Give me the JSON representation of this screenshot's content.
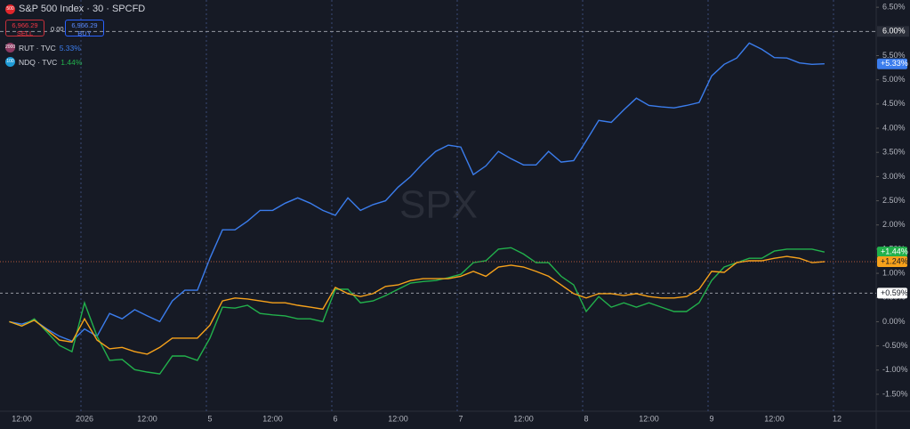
{
  "chart_data": {
    "type": "line",
    "title": "S&P 500 Index · 30 · SPCFD",
    "badges": [
      "500",
      "2000",
      "100"
    ],
    "sell_price": "6,966.29",
    "sell_label": "SELL",
    "spread": "0.00",
    "buy_price": "6,966.29",
    "buy_label": "BUY",
    "watermark": "SPX",
    "categories": [
      null,
      "12:00",
      null,
      null,
      null,
      null,
      "2026",
      null,
      null,
      null,
      null,
      "12:00",
      null,
      null,
      null,
      null,
      "5",
      null,
      null,
      null,
      null,
      "12:00",
      null,
      null,
      null,
      null,
      "6",
      null,
      null,
      null,
      null,
      "12:00",
      null,
      null,
      null,
      null,
      "7",
      null,
      null,
      null,
      null,
      "12:00",
      null,
      null,
      null,
      null,
      "8",
      null,
      null,
      null,
      null,
      "12:00",
      null,
      null,
      null,
      null,
      "9",
      null,
      null,
      null,
      null,
      "12:00",
      null,
      null,
      null,
      null,
      "12"
    ],
    "series": [
      {
        "name": "RUT · TVC",
        "legend_value": "5.33%",
        "last_label": "+5.33%",
        "color": "#3b7ded",
        "values": [
          0,
          -0.05,
          0.03,
          -0.15,
          -0.3,
          -0.4,
          -0.15,
          -0.3,
          0.17,
          0.06,
          0.25,
          0.12,
          0,
          0.43,
          0.65,
          0.65,
          1.31,
          1.9,
          1.9,
          2.08,
          2.3,
          2.3,
          2.45,
          2.56,
          2.45,
          2.3,
          2.2,
          2.56,
          2.3,
          2.42,
          2.5,
          2.78,
          3.0,
          3.28,
          3.52,
          3.65,
          3.61,
          3.04,
          3.22,
          3.52,
          3.37,
          3.24,
          3.24,
          3.52,
          3.3,
          3.33,
          3.74,
          4.16,
          4.12,
          4.38,
          4.62,
          4.47,
          4.44,
          4.42,
          4.47,
          4.53,
          5.08,
          5.32,
          5.45,
          5.76,
          5.63,
          5.46,
          5.45,
          5.35,
          5.32,
          5.33,
          null
        ]
      },
      {
        "name": "NDQ · TVC",
        "legend_value": "1.44%",
        "last_label": "+1.44%",
        "color": "#22b14c",
        "values": [
          0,
          -0.09,
          0.06,
          -0.21,
          -0.49,
          -0.62,
          0.39,
          -0.3,
          -0.8,
          -0.78,
          -0.99,
          -1.04,
          -1.08,
          -0.71,
          -0.71,
          -0.8,
          -0.34,
          0.3,
          0.28,
          0.34,
          0.17,
          0.14,
          0.12,
          0.06,
          0.06,
          0,
          0.67,
          0.67,
          0.39,
          0.43,
          0.54,
          0.67,
          0.8,
          0.83,
          0.85,
          0.91,
          0.98,
          1.22,
          1.26,
          1.5,
          1.53,
          1.4,
          1.22,
          1.22,
          0.94,
          0.76,
          0.21,
          0.52,
          0.3,
          0.39,
          0.3,
          0.39,
          0.3,
          0.21,
          0.21,
          0.39,
          0.85,
          1.13,
          1.22,
          1.31,
          1.31,
          1.46,
          1.5,
          1.5,
          1.5,
          1.44,
          null
        ]
      },
      {
        "name": "SPX",
        "last_label": "+1.24%",
        "color": "#f7a21b",
        "values": [
          0,
          -0.09,
          0.03,
          -0.17,
          -0.38,
          -0.42,
          0.06,
          -0.38,
          -0.56,
          -0.53,
          -0.62,
          -0.67,
          -0.53,
          -0.34,
          -0.34,
          -0.34,
          -0.07,
          0.43,
          0.49,
          0.47,
          0.43,
          0.39,
          0.39,
          0.34,
          0.3,
          0.26,
          0.71,
          0.58,
          0.52,
          0.58,
          0.73,
          0.76,
          0.85,
          0.89,
          0.89,
          0.89,
          0.94,
          1.04,
          0.94,
          1.13,
          1.17,
          1.13,
          1.04,
          0.94,
          0.76,
          0.58,
          0.49,
          0.58,
          0.58,
          0.54,
          0.58,
          0.52,
          0.49,
          0.49,
          0.52,
          0.67,
          1.04,
          1.02,
          1.22,
          1.26,
          1.26,
          1.31,
          1.35,
          1.31,
          1.22,
          1.24,
          null
        ]
      }
    ],
    "ylim": [
      -1.85,
      6.65
    ],
    "yticks": [
      {
        "value": -1.5,
        "label": "-1.50%"
      },
      {
        "value": -1.0,
        "label": "-1.00%"
      },
      {
        "value": -0.5,
        "label": "-0.50%"
      },
      {
        "value": 0,
        "label": "0.00%"
      },
      {
        "value": 0.5,
        "label": "0.50%"
      },
      {
        "value": 1.0,
        "label": "1.00%"
      },
      {
        "value": 1.5,
        "label": "1.50%"
      },
      {
        "value": 2.0,
        "label": "2.00%"
      },
      {
        "value": 2.5,
        "label": "2.50%"
      },
      {
        "value": 3.0,
        "label": "3.00%"
      },
      {
        "value": 3.5,
        "label": "3.50%"
      },
      {
        "value": 4.0,
        "label": "4.00%"
      },
      {
        "value": 4.5,
        "label": "4.50%"
      },
      {
        "value": 5.0,
        "label": "5.00%"
      },
      {
        "value": 5.5,
        "label": "5.50%"
      },
      {
        "value": 6.5,
        "label": "6.50%"
      }
    ],
    "reference_line": {
      "value": 0.59,
      "label": "+0.59%"
    },
    "crosshair": {
      "value": 6.0,
      "label": "6.00%"
    }
  }
}
